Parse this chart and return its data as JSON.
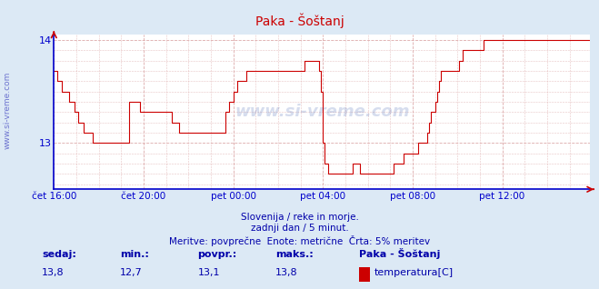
{
  "title": "Paka - Šoštanj",
  "bg_color": "#dce9f5",
  "plot_bg_color": "#ffffff",
  "line_color": "#cc0000",
  "grid_color": "#ddaaaa",
  "axis_color": "#0000cc",
  "text_color": "#0000aa",
  "title_color": "#cc0000",
  "ylim": [
    12.55,
    14.05
  ],
  "yticks": [
    13,
    14
  ],
  "xlim": [
    0,
    287
  ],
  "xtick_positions": [
    0,
    48,
    96,
    144,
    192,
    240
  ],
  "xtick_labels": [
    "čet 16:00",
    "čet 20:00",
    "pet 00:00",
    "pet 04:00",
    "pet 08:00",
    "pet 12:00"
  ],
  "subtitle1": "Slovenija / reke in morje.",
  "subtitle2": "zadnji dan / 5 minut.",
  "subtitle3": "Meritve: povprečne  Enote: metrične  Črta: 5% meritev",
  "footer_labels": [
    "sedaj:",
    "min.:",
    "povpr.:",
    "maks.:"
  ],
  "footer_values": [
    "13,8",
    "12,7",
    "13,1",
    "13,8"
  ],
  "legend_label": "Paka - Šoštanj",
  "legend_item": "temperatura[C]",
  "legend_color": "#cc0000",
  "watermark_side": "www.si-vreme.com",
  "watermark_center": "www.si-vreme.com",
  "data_y": [
    13.7,
    13.7,
    13.6,
    13.6,
    13.5,
    13.5,
    13.5,
    13.5,
    13.4,
    13.4,
    13.4,
    13.3,
    13.3,
    13.2,
    13.2,
    13.2,
    13.1,
    13.1,
    13.1,
    13.1,
    13.1,
    13.0,
    13.0,
    13.0,
    13.0,
    13.0,
    13.0,
    13.0,
    13.0,
    13.0,
    13.0,
    13.0,
    13.0,
    13.0,
    13.0,
    13.0,
    13.0,
    13.0,
    13.0,
    13.0,
    13.4,
    13.4,
    13.4,
    13.4,
    13.4,
    13.4,
    13.3,
    13.3,
    13.3,
    13.3,
    13.3,
    13.3,
    13.3,
    13.3,
    13.3,
    13.3,
    13.3,
    13.3,
    13.3,
    13.3,
    13.3,
    13.3,
    13.3,
    13.2,
    13.2,
    13.2,
    13.2,
    13.1,
    13.1,
    13.1,
    13.1,
    13.1,
    13.1,
    13.1,
    13.1,
    13.1,
    13.1,
    13.1,
    13.1,
    13.1,
    13.1,
    13.1,
    13.1,
    13.1,
    13.1,
    13.1,
    13.1,
    13.1,
    13.1,
    13.1,
    13.1,
    13.1,
    13.3,
    13.3,
    13.4,
    13.4,
    13.5,
    13.5,
    13.6,
    13.6,
    13.6,
    13.6,
    13.6,
    13.7,
    13.7,
    13.7,
    13.7,
    13.7,
    13.7,
    13.7,
    13.7,
    13.7,
    13.7,
    13.7,
    13.7,
    13.7,
    13.7,
    13.7,
    13.7,
    13.7,
    13.7,
    13.7,
    13.7,
    13.7,
    13.7,
    13.7,
    13.7,
    13.7,
    13.7,
    13.7,
    13.7,
    13.7,
    13.7,
    13.7,
    13.8,
    13.8,
    13.8,
    13.8,
    13.8,
    13.8,
    13.8,
    13.8,
    13.7,
    13.5,
    13.0,
    12.8,
    12.8,
    12.7,
    12.7,
    12.7,
    12.7,
    12.7,
    12.7,
    12.7,
    12.7,
    12.7,
    12.7,
    12.7,
    12.7,
    12.7,
    12.8,
    12.8,
    12.8,
    12.8,
    12.7,
    12.7,
    12.7,
    12.7,
    12.7,
    12.7,
    12.7,
    12.7,
    12.7,
    12.7,
    12.7,
    12.7,
    12.7,
    12.7,
    12.7,
    12.7,
    12.7,
    12.7,
    12.8,
    12.8,
    12.8,
    12.8,
    12.8,
    12.9,
    12.9,
    12.9,
    12.9,
    12.9,
    12.9,
    12.9,
    12.9,
    13.0,
    13.0,
    13.0,
    13.0,
    13.0,
    13.1,
    13.2,
    13.3,
    13.3,
    13.4,
    13.5,
    13.6,
    13.7,
    13.7,
    13.7,
    13.7,
    13.7,
    13.7,
    13.7,
    13.7,
    13.7,
    13.7,
    13.8,
    13.8,
    13.9,
    13.9,
    13.9,
    13.9,
    13.9,
    13.9,
    13.9,
    13.9,
    13.9,
    13.9,
    13.9,
    14.0,
    14.0,
    14.0,
    14.0,
    14.0,
    14.0,
    14.0,
    14.0,
    14.0,
    14.0,
    14.0,
    14.0,
    14.0,
    14.0,
    14.0,
    14.0,
    14.0,
    14.0,
    14.0,
    14.0,
    14.0,
    14.0,
    14.0,
    14.0,
    14.0,
    14.0,
    14.0,
    14.0,
    14.0,
    14.0,
    14.0,
    14.0,
    14.0,
    14.0,
    14.0,
    14.0,
    14.0,
    14.0,
    14.0,
    14.0,
    14.0,
    14.0,
    14.0,
    14.0,
    14.0,
    14.0,
    14.0,
    14.0,
    14.0,
    14.0,
    14.0,
    14.0,
    14.0,
    14.0,
    14.0,
    14.0,
    14.0,
    14.0,
    14.0
  ]
}
